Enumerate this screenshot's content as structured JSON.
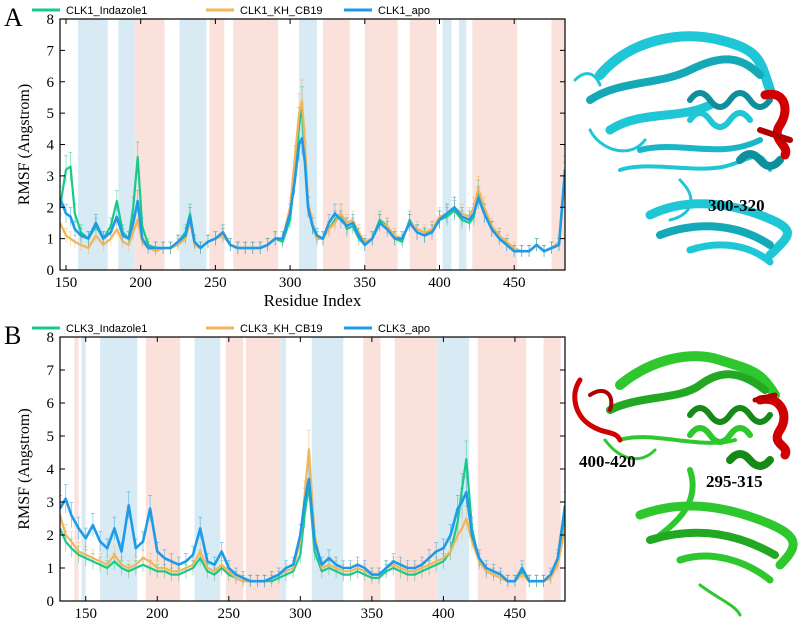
{
  "colors": {
    "indazole": "#19c98a",
    "kh_cb19": "#f2b55a",
    "apo": "#1e9be8",
    "band_blue": "#d8eaf4",
    "band_red": "#fbe1dc",
    "protein_cyan": "#1fc6d6",
    "protein_green": "#2ec82e",
    "highlight_red": "#d00000"
  },
  "icons": {
    "protein_a": "protein-ribbon-cyan",
    "protein_b": "protein-ribbon-green"
  },
  "panels": {
    "a": {
      "letter": "A",
      "region_label": "300-320"
    },
    "b": {
      "letter": "B",
      "region_label_1": "400-420",
      "region_label_2": "295-315"
    }
  },
  "chart_data": [
    {
      "type": "line",
      "panel": "A",
      "xlabel": "Residue Index",
      "ylabel": "RMSF (Angstrom)",
      "xlim": [
        146,
        484
      ],
      "ylim": [
        0,
        8
      ],
      "xticks": [
        150,
        200,
        250,
        300,
        350,
        400,
        450
      ],
      "yticks": [
        0,
        1,
        2,
        3,
        4,
        5,
        6,
        7,
        8
      ],
      "legend": [
        "CLK1_Indazole1",
        "CLK1_KH_CB19",
        "CLK1_apo"
      ],
      "bands_blue": [
        [
          158,
          178
        ],
        [
          185,
          196
        ],
        [
          226,
          244
        ],
        [
          306,
          318
        ],
        [
          402,
          408
        ],
        [
          413,
          418
        ]
      ],
      "bands_red": [
        [
          196,
          216
        ],
        [
          246,
          256
        ],
        [
          262,
          292
        ],
        [
          322,
          340
        ],
        [
          350,
          372
        ],
        [
          380,
          398
        ],
        [
          422,
          452
        ],
        [
          475,
          484
        ]
      ],
      "series": [
        {
          "name": "CLK1_Indazole1",
          "x": [
            146,
            150,
            153,
            156,
            160,
            165,
            170,
            175,
            180,
            184,
            188,
            192,
            195,
            198,
            201,
            205,
            210,
            215,
            220,
            225,
            230,
            233,
            236,
            240,
            245,
            250,
            255,
            260,
            265,
            270,
            275,
            280,
            285,
            290,
            295,
            300,
            303,
            306,
            308,
            310,
            312,
            315,
            318,
            322,
            326,
            330,
            334,
            338,
            342,
            346,
            350,
            355,
            360,
            365,
            370,
            375,
            380,
            385,
            390,
            395,
            400,
            405,
            410,
            415,
            420,
            423,
            426,
            430,
            435,
            440,
            445,
            450,
            455,
            460,
            465,
            470,
            475,
            480,
            484
          ],
          "values": [
            2.0,
            3.2,
            3.3,
            1.8,
            1.2,
            1.0,
            1.4,
            1.0,
            1.4,
            2.2,
            1.2,
            1.0,
            2.0,
            3.6,
            1.4,
            0.8,
            0.7,
            0.7,
            0.7,
            0.9,
            1.2,
            1.8,
            0.9,
            0.7,
            0.9,
            1.0,
            1.1,
            0.8,
            0.7,
            0.7,
            0.7,
            0.7,
            0.8,
            1.0,
            0.9,
            1.6,
            3.0,
            4.6,
            5.2,
            3.6,
            2.0,
            1.4,
            1.0,
            1.0,
            1.3,
            1.6,
            1.8,
            1.3,
            1.4,
            1.0,
            0.8,
            1.0,
            1.6,
            1.4,
            1.0,
            0.9,
            1.6,
            1.2,
            1.1,
            1.3,
            1.6,
            1.7,
            1.9,
            1.6,
            1.5,
            1.7,
            2.5,
            1.8,
            1.3,
            1.1,
            0.8,
            0.6,
            0.6,
            0.6,
            0.8,
            0.6,
            0.7,
            0.8,
            3.0
          ]
        },
        {
          "name": "CLK1_KH_CB19",
          "x": [
            146,
            150,
            153,
            156,
            160,
            165,
            170,
            175,
            180,
            184,
            188,
            192,
            195,
            198,
            201,
            205,
            210,
            215,
            220,
            225,
            230,
            233,
            236,
            240,
            245,
            250,
            255,
            260,
            265,
            270,
            275,
            280,
            285,
            290,
            295,
            300,
            303,
            306,
            308,
            310,
            312,
            315,
            318,
            322,
            326,
            330,
            334,
            338,
            342,
            346,
            350,
            355,
            360,
            365,
            370,
            375,
            380,
            385,
            390,
            395,
            400,
            405,
            410,
            415,
            420,
            423,
            426,
            430,
            435,
            440,
            445,
            450,
            455,
            460,
            465,
            470,
            475,
            480,
            484
          ],
          "values": [
            1.5,
            1.1,
            1.0,
            0.9,
            0.8,
            0.7,
            1.1,
            0.8,
            1.0,
            1.3,
            0.9,
            0.8,
            1.2,
            1.6,
            0.9,
            0.7,
            0.6,
            0.7,
            0.7,
            0.8,
            1.0,
            1.6,
            0.8,
            0.7,
            0.9,
            1.0,
            1.1,
            0.8,
            0.7,
            0.7,
            0.7,
            0.7,
            0.8,
            1.0,
            1.0,
            2.0,
            3.5,
            5.0,
            5.4,
            4.0,
            2.2,
            1.5,
            1.0,
            1.0,
            1.3,
            1.5,
            1.8,
            1.5,
            1.6,
            1.2,
            0.9,
            1.0,
            1.5,
            1.4,
            1.1,
            1.0,
            1.5,
            1.3,
            1.2,
            1.3,
            1.7,
            1.8,
            2.0,
            1.8,
            1.7,
            2.0,
            2.6,
            2.0,
            1.4,
            1.1,
            0.9,
            0.7,
            0.6,
            0.6,
            0.8,
            0.6,
            0.7,
            0.9,
            2.8
          ]
        },
        {
          "name": "CLK1_apo",
          "x": [
            146,
            150,
            153,
            156,
            160,
            165,
            170,
            175,
            180,
            184,
            188,
            192,
            195,
            198,
            201,
            205,
            210,
            215,
            220,
            225,
            230,
            233,
            236,
            240,
            245,
            250,
            255,
            260,
            265,
            270,
            275,
            280,
            285,
            290,
            295,
            300,
            303,
            306,
            308,
            310,
            312,
            315,
            318,
            322,
            326,
            330,
            334,
            338,
            342,
            346,
            350,
            355,
            360,
            365,
            370,
            375,
            380,
            385,
            390,
            395,
            400,
            405,
            410,
            415,
            420,
            423,
            426,
            430,
            435,
            440,
            445,
            450,
            455,
            460,
            465,
            470,
            475,
            480,
            484
          ],
          "values": [
            2.3,
            1.8,
            1.7,
            1.3,
            1.1,
            1.0,
            1.5,
            1.0,
            1.2,
            1.7,
            1.1,
            1.0,
            1.5,
            2.2,
            1.0,
            0.7,
            0.7,
            0.7,
            0.7,
            0.9,
            1.1,
            1.7,
            0.9,
            0.7,
            0.9,
            1.0,
            1.2,
            0.8,
            0.7,
            0.7,
            0.7,
            0.7,
            0.8,
            1.0,
            1.0,
            1.8,
            2.8,
            4.0,
            4.2,
            3.4,
            2.0,
            1.4,
            1.1,
            1.0,
            1.5,
            1.8,
            1.6,
            1.4,
            1.5,
            1.1,
            0.8,
            1.0,
            1.5,
            1.3,
            1.0,
            1.0,
            1.5,
            1.2,
            1.1,
            1.2,
            1.6,
            1.8,
            2.0,
            1.7,
            1.6,
            1.8,
            2.3,
            1.8,
            1.3,
            1.0,
            0.8,
            0.6,
            0.6,
            0.6,
            0.8,
            0.6,
            0.7,
            0.8,
            3.2
          ]
        }
      ]
    },
    {
      "type": "line",
      "panel": "B",
      "xlabel": "Residue Index",
      "ylabel": "RMSF (Angstrom)",
      "xlim": [
        132,
        485
      ],
      "ylim": [
        0,
        8
      ],
      "xticks": [
        150,
        200,
        250,
        300,
        350,
        400,
        450
      ],
      "yticks": [
        0,
        1,
        2,
        3,
        4,
        5,
        6,
        7,
        8
      ],
      "legend": [
        "CLK3_Indazole1",
        "CLK3_KH_CB19",
        "CLK3_apo"
      ],
      "bands_blue": [
        [
          147,
          150
        ],
        [
          160,
          186
        ],
        [
          226,
          244
        ],
        [
          286,
          290
        ],
        [
          308,
          330
        ],
        [
          396,
          418
        ]
      ],
      "bands_red": [
        [
          142,
          145
        ],
        [
          192,
          216
        ],
        [
          248,
          260
        ],
        [
          262,
          286
        ],
        [
          344,
          356
        ],
        [
          366,
          396
        ],
        [
          424,
          458
        ],
        [
          470,
          482
        ]
      ],
      "series": [
        {
          "name": "CLK3_Indazole1",
          "x": [
            132,
            136,
            140,
            145,
            150,
            155,
            160,
            165,
            170,
            175,
            180,
            185,
            190,
            195,
            200,
            205,
            210,
            215,
            220,
            225,
            230,
            235,
            240,
            245,
            250,
            255,
            260,
            265,
            270,
            275,
            280,
            285,
            290,
            295,
            300,
            303,
            306,
            310,
            315,
            320,
            325,
            330,
            335,
            340,
            345,
            350,
            355,
            360,
            365,
            370,
            375,
            380,
            385,
            390,
            395,
            400,
            405,
            410,
            413,
            416,
            420,
            425,
            430,
            435,
            440,
            445,
            450,
            455,
            460,
            465,
            470,
            475,
            480,
            485
          ],
          "values": [
            2.2,
            1.8,
            1.6,
            1.4,
            1.3,
            1.2,
            1.1,
            1.0,
            1.2,
            1.0,
            0.9,
            1.0,
            1.1,
            1.0,
            0.9,
            0.9,
            0.8,
            0.8,
            0.9,
            1.0,
            1.3,
            0.9,
            0.8,
            1.0,
            0.8,
            0.7,
            0.6,
            0.6,
            0.6,
            0.6,
            0.6,
            0.7,
            0.8,
            0.9,
            1.4,
            2.6,
            3.5,
            1.5,
            0.9,
            1.0,
            0.9,
            0.8,
            0.8,
            0.9,
            0.8,
            0.7,
            0.7,
            0.9,
            1.0,
            0.9,
            0.8,
            0.8,
            0.9,
            1.0,
            1.1,
            1.2,
            1.5,
            2.4,
            3.4,
            4.3,
            2.2,
            1.2,
            0.9,
            0.8,
            0.7,
            0.6,
            0.6,
            0.9,
            0.6,
            0.6,
            0.6,
            0.7,
            1.2,
            2.6
          ]
        },
        {
          "name": "CLK3_KH_CB19",
          "x": [
            132,
            136,
            140,
            145,
            150,
            155,
            160,
            165,
            170,
            175,
            180,
            185,
            190,
            195,
            200,
            205,
            210,
            215,
            220,
            225,
            230,
            235,
            240,
            245,
            250,
            255,
            260,
            265,
            270,
            275,
            280,
            285,
            290,
            295,
            300,
            303,
            306,
            310,
            315,
            320,
            325,
            330,
            335,
            340,
            345,
            350,
            355,
            360,
            365,
            370,
            375,
            380,
            385,
            390,
            395,
            400,
            405,
            410,
            413,
            416,
            420,
            425,
            430,
            435,
            440,
            445,
            450,
            455,
            460,
            465,
            470,
            475,
            480,
            485
          ],
          "values": [
            2.6,
            2.0,
            1.8,
            1.5,
            1.4,
            1.3,
            1.2,
            1.1,
            1.4,
            1.1,
            1.0,
            1.1,
            1.3,
            1.2,
            1.0,
            1.0,
            0.9,
            0.9,
            1.0,
            1.1,
            1.5,
            1.0,
            0.9,
            1.1,
            0.9,
            0.7,
            0.6,
            0.6,
            0.6,
            0.6,
            0.7,
            0.8,
            0.9,
            1.0,
            1.8,
            3.2,
            4.6,
            2.0,
            1.0,
            1.1,
            1.0,
            0.9,
            0.9,
            1.0,
            0.9,
            0.8,
            0.8,
            1.0,
            1.1,
            1.0,
            0.9,
            0.9,
            1.0,
            1.1,
            1.2,
            1.3,
            1.5,
            2.0,
            2.2,
            2.5,
            1.8,
            1.2,
            0.9,
            0.8,
            0.7,
            0.6,
            0.6,
            0.8,
            0.6,
            0.6,
            0.6,
            0.7,
            1.1,
            2.2
          ]
        },
        {
          "name": "CLK3_apo",
          "x": [
            132,
            136,
            140,
            145,
            150,
            155,
            160,
            165,
            170,
            175,
            180,
            185,
            190,
            195,
            200,
            205,
            210,
            215,
            220,
            225,
            230,
            235,
            240,
            245,
            250,
            255,
            260,
            265,
            270,
            275,
            280,
            285,
            290,
            295,
            300,
            303,
            306,
            310,
            315,
            320,
            325,
            330,
            335,
            340,
            345,
            350,
            355,
            360,
            365,
            370,
            375,
            380,
            385,
            390,
            395,
            400,
            405,
            410,
            413,
            416,
            420,
            425,
            430,
            435,
            440,
            445,
            450,
            455,
            460,
            465,
            470,
            475,
            480,
            485
          ],
          "values": [
            2.8,
            3.1,
            2.6,
            2.2,
            1.9,
            2.3,
            1.8,
            1.6,
            2.2,
            1.5,
            2.9,
            1.6,
            1.8,
            2.8,
            1.5,
            1.3,
            1.2,
            1.1,
            1.2,
            1.4,
            2.2,
            1.2,
            1.1,
            1.5,
            1.0,
            0.8,
            0.7,
            0.6,
            0.6,
            0.6,
            0.7,
            0.8,
            1.0,
            1.1,
            2.0,
            3.0,
            3.7,
            1.8,
            1.1,
            1.3,
            1.1,
            1.0,
            1.0,
            1.1,
            1.0,
            0.8,
            0.8,
            1.0,
            1.2,
            1.1,
            1.0,
            1.0,
            1.1,
            1.3,
            1.5,
            1.6,
            2.0,
            2.8,
            3.0,
            3.3,
            2.0,
            1.3,
            1.0,
            0.9,
            0.8,
            0.6,
            0.6,
            1.0,
            0.6,
            0.6,
            0.6,
            0.8,
            1.3,
            2.9
          ]
        }
      ]
    }
  ]
}
